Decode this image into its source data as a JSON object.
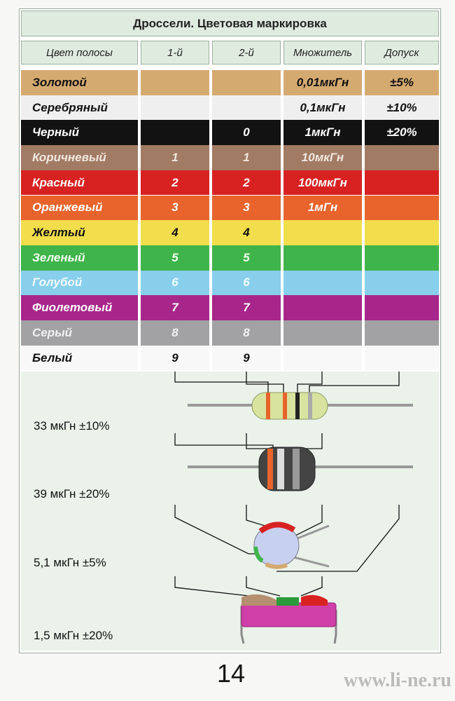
{
  "header": {
    "title": "Дроссели. Цветовая маркировка"
  },
  "table": {
    "columns": [
      "Цвет полосы",
      "1-й",
      "2-й",
      "Множитель",
      "Допуск"
    ],
    "rows": [
      {
        "color": "#d5aa70",
        "text_color": "#111111",
        "cells": [
          "Золотой",
          null,
          null,
          "0,01мкГн",
          "±5%"
        ]
      },
      {
        "color": "#efefef",
        "text_color": "#111111",
        "cells": [
          "Серебряный",
          null,
          null,
          "0,1мкГн",
          "±10%"
        ]
      },
      {
        "color": "#121212",
        "text_color": "#ffffff",
        "cells": [
          "Черный",
          null,
          "0",
          "1мкГн",
          "±20%"
        ]
      },
      {
        "color": "#a27b64",
        "text_color": "#f0e8e0",
        "cells": [
          "Коричневый",
          "1",
          "1",
          "10мкГн",
          null
        ]
      },
      {
        "color": "#d82222",
        "text_color": "#ffffff",
        "cells": [
          "Красный",
          "2",
          "2",
          "100мкГн",
          null
        ]
      },
      {
        "color": "#e8642c",
        "text_color": "#ffffff",
        "cells": [
          "Оранжевый",
          "3",
          "3",
          "1мГн",
          null
        ]
      },
      {
        "color": "#f2de4c",
        "text_color": "#111111",
        "cells": [
          "Желтый",
          "4",
          "4",
          null,
          null
        ]
      },
      {
        "color": "#3fb44a",
        "text_color": "#f4fff4",
        "cells": [
          "Зеленый",
          "5",
          "5",
          null,
          null
        ]
      },
      {
        "color": "#88cfec",
        "text_color": "#f4fbff",
        "cells": [
          "Голубой",
          "6",
          "6",
          null,
          null
        ]
      },
      {
        "color": "#a8268a",
        "text_color": "#ffffff",
        "cells": [
          "Фиолетовый",
          "7",
          "7",
          null,
          null
        ]
      },
      {
        "color": "#a2a2a4",
        "text_color": "#f2f2f2",
        "cells": [
          "Серый",
          "8",
          "8",
          null,
          null
        ]
      },
      {
        "color": "#f8f8f8",
        "text_color": "#111111",
        "cells": [
          "Белый",
          "9",
          "9",
          null,
          null
        ]
      }
    ]
  },
  "examples": [
    "33 мкГн ±10%",
    "39 мкГн ±20%",
    "5,1 мкГн ±5%",
    "1,5 мкГн ±20%"
  ],
  "footer": {
    "page_number": "14",
    "watermark": "www.li-ne.ru"
  }
}
